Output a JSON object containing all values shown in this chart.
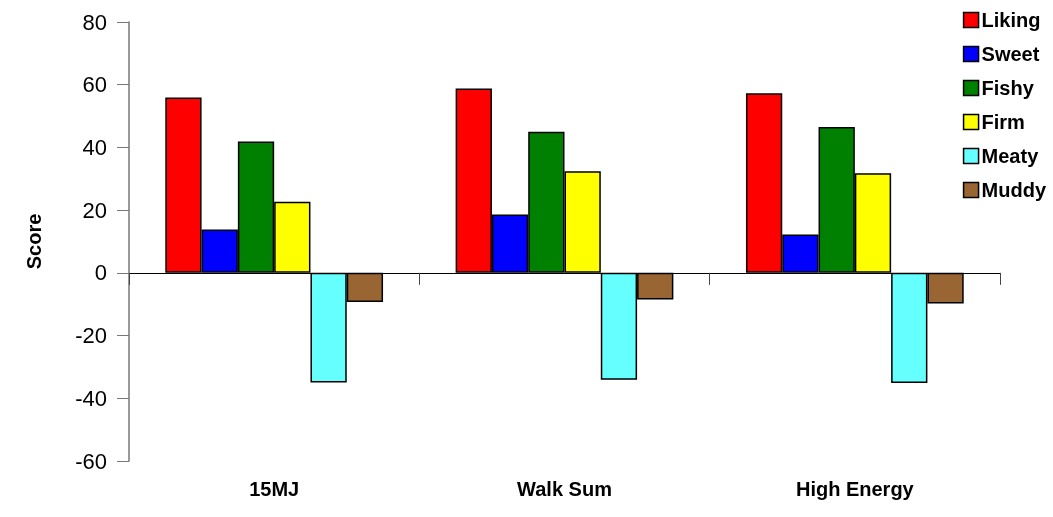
{
  "chart_data": {
    "type": "bar",
    "ylabel": "Score",
    "categories": [
      "15MJ",
      "Walk Sum",
      "High Energy"
    ],
    "series": [
      {
        "name": "Liking",
        "color": "#ff0000",
        "values": [
          55.9,
          58.8,
          57.3
        ]
      },
      {
        "name": "Sweet",
        "color": "#0000ff",
        "values": [
          13.8,
          18.6,
          12.2
        ]
      },
      {
        "name": "Fishy",
        "color": "#008000",
        "values": [
          41.9,
          45.0,
          46.5
        ]
      },
      {
        "name": "Firm",
        "color": "#ffff00",
        "values": [
          22.7,
          32.4,
          31.8
        ]
      },
      {
        "name": "Meaty",
        "color": "#66ffff",
        "values": [
          -35.0,
          -34.1,
          -35.1
        ]
      },
      {
        "name": "Muddy",
        "color": "#996633",
        "values": [
          -9.3,
          -8.5,
          -9.8
        ]
      }
    ],
    "ylim": [
      -60,
      80
    ],
    "yticks": [
      -60,
      -40,
      -20,
      0,
      20,
      40,
      60,
      80
    ],
    "legend": "top right"
  }
}
